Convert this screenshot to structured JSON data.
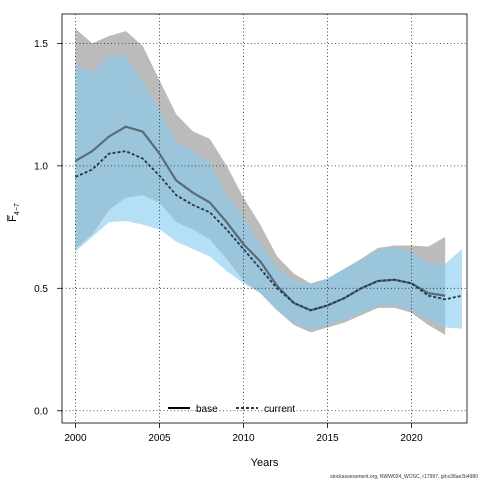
{
  "chart_data": {
    "type": "line",
    "xlabel": "Years",
    "ylabel": "F̅4-7",
    "ylabel_main": "F̅",
    "ylabel_sub": "4−7",
    "xlim": [
      1999.2,
      2023.3
    ],
    "ylim": [
      -0.05,
      1.62
    ],
    "xticks": [
      2000,
      2005,
      2010,
      2015,
      2020
    ],
    "xtick_labels": [
      "2000",
      "2005",
      "2010",
      "2015",
      "2020"
    ],
    "yticks": [
      0.0,
      0.5,
      1.0,
      1.5
    ],
    "ytick_labels": [
      "0.0",
      "0.5",
      "1.0",
      "1.5"
    ],
    "grid": true,
    "legend_position": "bottom-center",
    "series": [
      {
        "name": "base",
        "line_color": "#5a6b78",
        "band_color": "#a8a8a8",
        "x": [
          2000,
          2001,
          2002,
          2003,
          2004,
          2005,
          2006,
          2007,
          2008,
          2009,
          2010,
          2011,
          2012,
          2013,
          2014,
          2015,
          2016,
          2017,
          2018,
          2019,
          2020,
          2021,
          2022
        ],
        "y": [
          1.02,
          1.06,
          1.12,
          1.16,
          1.14,
          1.05,
          0.94,
          0.89,
          0.85,
          0.77,
          0.68,
          0.61,
          0.51,
          0.44,
          0.41,
          0.43,
          0.46,
          0.5,
          0.53,
          0.535,
          0.52,
          0.48,
          0.47
        ],
        "upper": [
          1.56,
          1.5,
          1.53,
          1.55,
          1.49,
          1.35,
          1.21,
          1.14,
          1.11,
          1.0,
          0.87,
          0.76,
          0.63,
          0.56,
          0.52,
          0.54,
          0.58,
          0.62,
          0.665,
          0.675,
          0.675,
          0.67,
          0.71
        ],
        "lower": [
          0.66,
          0.72,
          0.82,
          0.87,
          0.88,
          0.85,
          0.77,
          0.74,
          0.7,
          0.62,
          0.53,
          0.48,
          0.41,
          0.35,
          0.32,
          0.34,
          0.36,
          0.39,
          0.42,
          0.42,
          0.4,
          0.35,
          0.31
        ]
      },
      {
        "name": "current",
        "line_color": "#1f3a4d",
        "band_color": "#87cbef",
        "x": [
          2000,
          2001,
          2002,
          2003,
          2004,
          2005,
          2006,
          2007,
          2008,
          2009,
          2010,
          2011,
          2012,
          2013,
          2014,
          2015,
          2016,
          2017,
          2018,
          2019,
          2020,
          2021,
          2022,
          2023
        ],
        "y": [
          0.955,
          0.985,
          1.05,
          1.06,
          1.03,
          0.96,
          0.88,
          0.84,
          0.81,
          0.74,
          0.66,
          0.58,
          0.5,
          0.44,
          0.41,
          0.43,
          0.46,
          0.5,
          0.53,
          0.535,
          0.52,
          0.47,
          0.455,
          0.47
        ],
        "upper": [
          1.41,
          1.38,
          1.45,
          1.45,
          1.34,
          1.23,
          1.1,
          1.06,
          1.01,
          0.88,
          0.79,
          0.68,
          0.58,
          0.53,
          0.515,
          0.54,
          0.58,
          0.615,
          0.66,
          0.665,
          0.65,
          0.6,
          0.6,
          0.66
        ],
        "lower": [
          0.65,
          0.71,
          0.77,
          0.775,
          0.76,
          0.74,
          0.69,
          0.66,
          0.63,
          0.57,
          0.52,
          0.48,
          0.41,
          0.36,
          0.33,
          0.35,
          0.37,
          0.4,
          0.43,
          0.43,
          0.41,
          0.37,
          0.34,
          0.335
        ]
      }
    ],
    "footnote": "stockassessment.org, NWW024_WOSC, r17997, git:e38ae2b4980"
  }
}
